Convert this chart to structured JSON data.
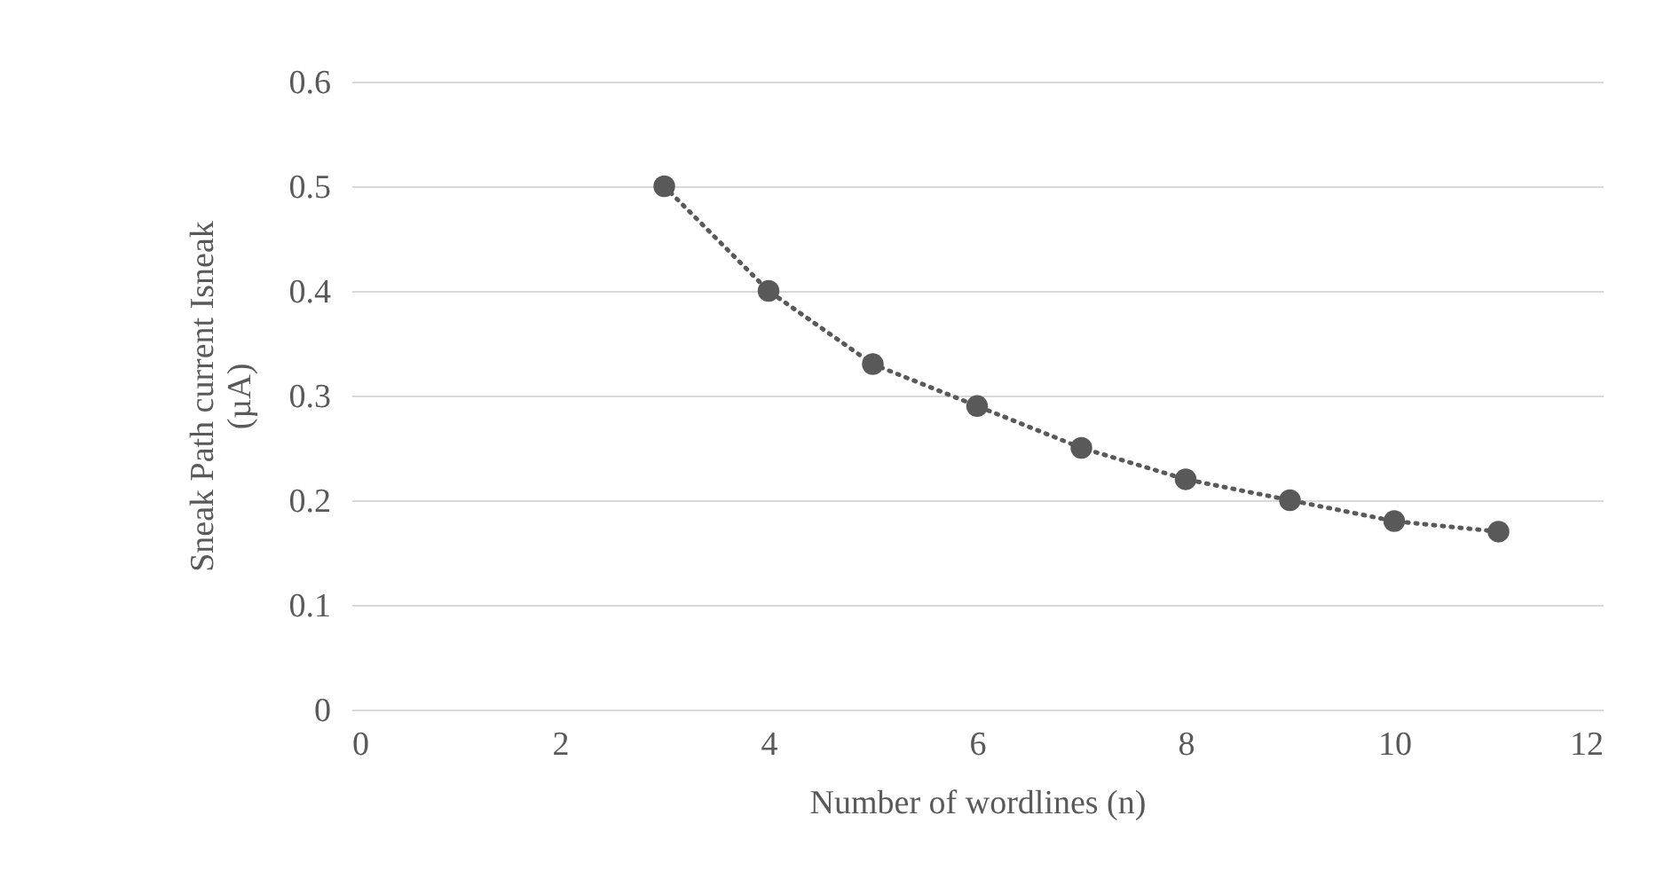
{
  "chart_data": {
    "type": "line",
    "xlabel": "Number of wordlines (n)",
    "ylabel": "Sneak Path current  Isneak (µA)",
    "x": [
      3,
      4,
      5,
      6,
      7,
      8,
      9,
      10,
      11
    ],
    "series": [
      {
        "color": "#595959",
        "values": [
          0.5,
          0.4,
          0.33,
          0.29,
          0.25,
          0.22,
          0.2,
          0.18,
          0.17
        ]
      }
    ],
    "xlim": [
      0,
      12
    ],
    "xticks": [
      0,
      2,
      4,
      6,
      8,
      10,
      12
    ],
    "ylim": [
      0,
      0.6
    ],
    "yticks": [
      0,
      0.1,
      0.2,
      0.3,
      0.4,
      0.5,
      0.6
    ],
    "grid": "y",
    "marker": "circle",
    "line_style": "dotted"
  }
}
